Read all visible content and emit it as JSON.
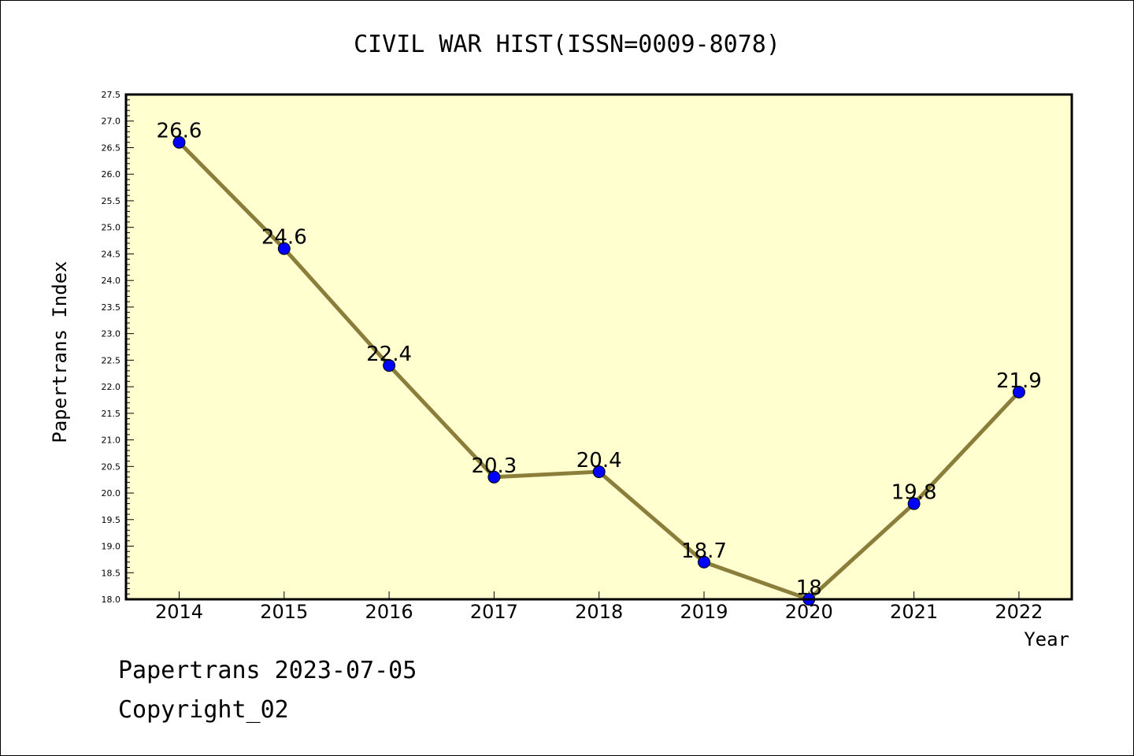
{
  "chart_data": {
    "type": "line",
    "title": "CIVIL WAR HIST(ISSN=0009-8078)",
    "xlabel": "Year",
    "ylabel": "Papertrans Index",
    "categories": [
      "2014",
      "2015",
      "2016",
      "2017",
      "2018",
      "2019",
      "2020",
      "2021",
      "2022"
    ],
    "values": [
      26.6,
      24.6,
      22.4,
      20.3,
      20.4,
      18.7,
      18,
      19.8,
      21.9
    ],
    "data_labels": [
      "26.6",
      "24.6",
      "22.4",
      "20.3",
      "20.4",
      "18.7",
      "18",
      "19.8",
      "21.9"
    ],
    "ylim": [
      18.0,
      27.5
    ],
    "ytick_step": 0.5,
    "grid": false,
    "colors": {
      "plot_background": "#ffffd0",
      "line": "#8b7d3a",
      "marker": "#0000ff"
    }
  },
  "footer": {
    "line1": "Papertrans 2023-07-05",
    "line2": "Copyright_02"
  }
}
